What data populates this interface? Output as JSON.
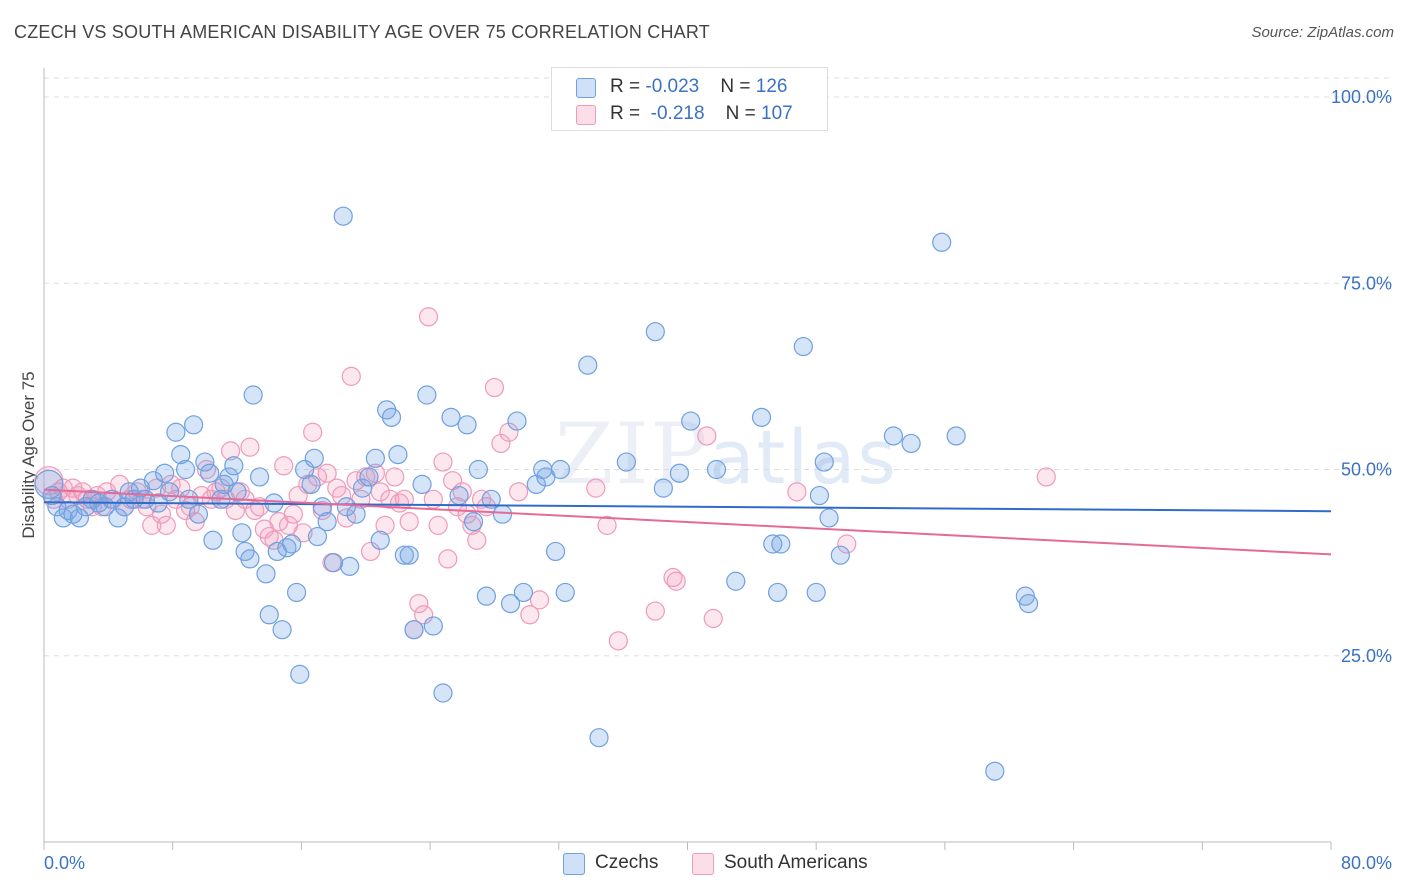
{
  "title": "CZECH VS SOUTH AMERICAN DISABILITY AGE OVER 75 CORRELATION CHART",
  "source": "Source: ZipAtlas.com",
  "watermark": {
    "zip": "ZIP",
    "atlas": "atlas"
  },
  "colors": {
    "blue_fill": "rgba(120,165,230,0.30)",
    "blue_stroke": "#6fa0e0",
    "blue_line": "#2f6cc9",
    "pink_fill": "rgba(245,160,190,0.25)",
    "pink_stroke": "#ee9ab8",
    "pink_line": "#e46a98",
    "axis_text": "#3a72c4",
    "grid": "#dddddd"
  },
  "legend": {
    "rows": [
      {
        "r_label": "R = ",
        "r_value": "-0.023",
        "n_label": "N = ",
        "n_value": "126"
      },
      {
        "r_label": "R = ",
        "r_value": "-0.218",
        "n_label": "N = ",
        "n_value": "107"
      }
    ]
  },
  "bottom_legend": {
    "czechs": "Czechs",
    "south_americans": "South Americans"
  },
  "chart_data": {
    "type": "scatter",
    "title": "CZECH VS SOUTH AMERICAN DISABILITY AGE OVER 75 CORRELATION CHART",
    "xlabel": "",
    "ylabel": "Disability Age Over 75",
    "xlim": [
      0,
      80
    ],
    "ylim": [
      0,
      100
    ],
    "x_tick_labels": [
      "0.0%",
      "80.0%"
    ],
    "y_ticks": [
      25,
      50,
      75,
      100
    ],
    "y_tick_labels": [
      "25.0%",
      "50.0%",
      "75.0%",
      "100.0%"
    ],
    "grid": true,
    "legend_position": "top-center",
    "series": [
      {
        "name": "Czechs",
        "r": -0.023,
        "n": 126,
        "trend": {
          "x": [
            0,
            80
          ],
          "y": [
            45.6,
            44.4
          ]
        },
        "points": [
          [
            0.3,
            48
          ],
          [
            0.5,
            46.5
          ],
          [
            0.8,
            45
          ],
          [
            1.2,
            43.5
          ],
          [
            1.5,
            44.5
          ],
          [
            1.8,
            44
          ],
          [
            2.2,
            43.5
          ],
          [
            2.6,
            45
          ],
          [
            3.0,
            46
          ],
          [
            3.4,
            45.5
          ],
          [
            3.8,
            45
          ],
          [
            4.2,
            46
          ],
          [
            4.6,
            43.5
          ],
          [
            5.0,
            45
          ],
          [
            5.3,
            47
          ],
          [
            5.6,
            46
          ],
          [
            6.0,
            47.5
          ],
          [
            6.3,
            46
          ],
          [
            6.8,
            48.5
          ],
          [
            7.1,
            45.5
          ],
          [
            7.5,
            49.5
          ],
          [
            7.8,
            47
          ],
          [
            8.2,
            55
          ],
          [
            8.5,
            52
          ],
          [
            8.8,
            50
          ],
          [
            9.0,
            46
          ],
          [
            9.3,
            56
          ],
          [
            9.6,
            44
          ],
          [
            10.0,
            51
          ],
          [
            10.3,
            49.5
          ],
          [
            10.5,
            40.5
          ],
          [
            11.0,
            46
          ],
          [
            11.2,
            48
          ],
          [
            11.5,
            49
          ],
          [
            11.8,
            50.5
          ],
          [
            12.0,
            47
          ],
          [
            12.3,
            41.5
          ],
          [
            12.5,
            39
          ],
          [
            12.8,
            38
          ],
          [
            13.0,
            60
          ],
          [
            13.4,
            49
          ],
          [
            13.8,
            36
          ],
          [
            14.0,
            30.5
          ],
          [
            14.3,
            45.5
          ],
          [
            14.5,
            39
          ],
          [
            14.8,
            28.5
          ],
          [
            15.1,
            39.5
          ],
          [
            15.4,
            40
          ],
          [
            15.7,
            33.5
          ],
          [
            15.9,
            22.5
          ],
          [
            16.2,
            50
          ],
          [
            16.6,
            48
          ],
          [
            16.8,
            51.5
          ],
          [
            17.0,
            41
          ],
          [
            17.3,
            45
          ],
          [
            17.6,
            43
          ],
          [
            18.0,
            37.5
          ],
          [
            18.6,
            84
          ],
          [
            18.8,
            45
          ],
          [
            19.0,
            37
          ],
          [
            19.4,
            44
          ],
          [
            19.8,
            47.5
          ],
          [
            20.2,
            49
          ],
          [
            20.6,
            51.5
          ],
          [
            20.9,
            40.5
          ],
          [
            21.3,
            58
          ],
          [
            21.6,
            57
          ],
          [
            22.0,
            52
          ],
          [
            22.4,
            38.5
          ],
          [
            22.7,
            38.5
          ],
          [
            23.0,
            28.5
          ],
          [
            23.5,
            48
          ],
          [
            23.8,
            60
          ],
          [
            24.2,
            29
          ],
          [
            24.8,
            20
          ],
          [
            25.3,
            57
          ],
          [
            25.8,
            46.5
          ],
          [
            26.3,
            56
          ],
          [
            26.7,
            43
          ],
          [
            27.0,
            50
          ],
          [
            27.5,
            33
          ],
          [
            27.8,
            46
          ],
          [
            28.5,
            44
          ],
          [
            29.0,
            32
          ],
          [
            29.4,
            56.5
          ],
          [
            29.8,
            33.5
          ],
          [
            30.6,
            48
          ],
          [
            31.0,
            50
          ],
          [
            31.2,
            49
          ],
          [
            31.8,
            39
          ],
          [
            32.1,
            50
          ],
          [
            32.4,
            33.5
          ],
          [
            33.8,
            64
          ],
          [
            34.5,
            14
          ],
          [
            36.2,
            51
          ],
          [
            38.0,
            68.5
          ],
          [
            38.5,
            47.5
          ],
          [
            39.5,
            49.5
          ],
          [
            40.2,
            56.5
          ],
          [
            41.8,
            50
          ],
          [
            43.0,
            35
          ],
          [
            44.6,
            57
          ],
          [
            45.3,
            40
          ],
          [
            45.8,
            40
          ],
          [
            45.6,
            33.5
          ],
          [
            47.2,
            66.5
          ],
          [
            48.0,
            33.5
          ],
          [
            48.2,
            46.5
          ],
          [
            48.5,
            51
          ],
          [
            48.8,
            43.5
          ],
          [
            49.5,
            38.5
          ],
          [
            52.8,
            54.5
          ],
          [
            53.9,
            53.5
          ],
          [
            55.8,
            80.5
          ],
          [
            56.7,
            54.5
          ],
          [
            59.1,
            9.5
          ],
          [
            61.0,
            33
          ],
          [
            61.2,
            32
          ]
        ]
      },
      {
        "name": "South Americans",
        "r": -0.218,
        "n": 107,
        "trend": {
          "x": [
            0,
            80
          ],
          "y": [
            47.3,
            38.6
          ]
        },
        "points": [
          [
            0.3,
            48.5
          ],
          [
            0.6,
            46
          ],
          [
            0.9,
            47
          ],
          [
            1.2,
            47.5
          ],
          [
            1.5,
            46
          ],
          [
            1.8,
            47.5
          ],
          [
            2.1,
            46.5
          ],
          [
            2.4,
            47
          ],
          [
            2.7,
            46
          ],
          [
            3.0,
            45
          ],
          [
            3.3,
            46.5
          ],
          [
            3.6,
            45
          ],
          [
            3.9,
            47
          ],
          [
            4.3,
            46
          ],
          [
            4.7,
            48
          ],
          [
            5.0,
            45
          ],
          [
            5.4,
            46
          ],
          [
            5.8,
            47
          ],
          [
            6.1,
            46
          ],
          [
            6.4,
            45
          ],
          [
            6.7,
            42.5
          ],
          [
            7.0,
            47.5
          ],
          [
            7.3,
            44
          ],
          [
            7.6,
            42.5
          ],
          [
            7.9,
            48
          ],
          [
            8.2,
            46
          ],
          [
            8.5,
            47.5
          ],
          [
            8.8,
            44.5
          ],
          [
            9.1,
            45
          ],
          [
            9.4,
            43
          ],
          [
            9.8,
            46.5
          ],
          [
            10.1,
            50
          ],
          [
            10.4,
            46
          ],
          [
            10.7,
            47
          ],
          [
            11.0,
            47.5
          ],
          [
            11.3,
            46
          ],
          [
            11.6,
            52.5
          ],
          [
            11.9,
            44.5
          ],
          [
            12.2,
            47
          ],
          [
            12.5,
            46
          ],
          [
            12.8,
            53
          ],
          [
            13.1,
            44.5
          ],
          [
            13.4,
            45
          ],
          [
            13.7,
            42
          ],
          [
            14.0,
            41
          ],
          [
            14.3,
            40.5
          ],
          [
            14.6,
            43
          ],
          [
            14.9,
            50.5
          ],
          [
            15.2,
            42.5
          ],
          [
            15.5,
            44
          ],
          [
            15.8,
            46.5
          ],
          [
            16.1,
            41.5
          ],
          [
            16.4,
            48
          ],
          [
            16.7,
            55
          ],
          [
            17.0,
            49
          ],
          [
            17.3,
            44.5
          ],
          [
            17.6,
            49.5
          ],
          [
            17.9,
            37.5
          ],
          [
            18.2,
            47.5
          ],
          [
            18.5,
            46.5
          ],
          [
            18.8,
            43.5
          ],
          [
            19.1,
            62.5
          ],
          [
            19.4,
            48.5
          ],
          [
            19.7,
            46
          ],
          [
            20.0,
            49
          ],
          [
            20.3,
            39
          ],
          [
            20.6,
            49.5
          ],
          [
            20.9,
            47
          ],
          [
            21.2,
            42.5
          ],
          [
            21.5,
            46
          ],
          [
            21.8,
            49
          ],
          [
            22.1,
            45.5
          ],
          [
            22.4,
            46
          ],
          [
            22.7,
            43
          ],
          [
            23.0,
            28.5
          ],
          [
            23.3,
            32
          ],
          [
            23.6,
            30.5
          ],
          [
            23.9,
            70.5
          ],
          [
            24.2,
            46
          ],
          [
            24.5,
            42.5
          ],
          [
            24.8,
            51
          ],
          [
            25.1,
            38
          ],
          [
            25.4,
            48.5
          ],
          [
            25.7,
            45
          ],
          [
            26.0,
            47
          ],
          [
            26.3,
            44
          ],
          [
            26.6,
            42.5
          ],
          [
            26.9,
            40.5
          ],
          [
            27.2,
            46
          ],
          [
            27.5,
            45
          ],
          [
            28.0,
            61
          ],
          [
            28.4,
            53.5
          ],
          [
            28.9,
            55
          ],
          [
            29.5,
            47
          ],
          [
            30.2,
            30.5
          ],
          [
            30.8,
            32.5
          ],
          [
            34.3,
            47.5
          ],
          [
            35.0,
            42.5
          ],
          [
            35.7,
            27
          ],
          [
            38.0,
            31
          ],
          [
            39.1,
            35.5
          ],
          [
            39.3,
            35
          ],
          [
            41.2,
            54.5
          ],
          [
            41.6,
            30
          ],
          [
            46.8,
            47
          ],
          [
            49.9,
            40
          ],
          [
            62.3,
            49
          ]
        ]
      }
    ]
  }
}
